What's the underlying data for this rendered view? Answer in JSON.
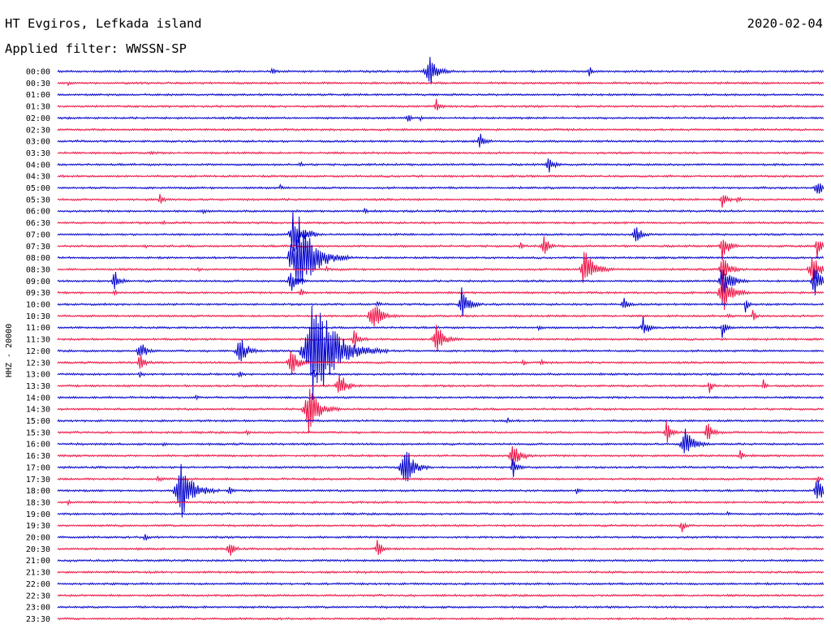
{
  "header": {
    "station": "HT Evgiros, Lefkada island",
    "filter": "Applied filter: WWSSN-SP",
    "date": "2020-02-04"
  },
  "chart_data": {
    "type": "line",
    "title": "HT Evgiros, Lefkada island",
    "ylabel": "HHZ - 20000",
    "colors": [
      "#0000cc",
      "#ee1144"
    ],
    "rows": [
      "00:00",
      "00:30",
      "01:00",
      "01:30",
      "02:00",
      "02:30",
      "03:00",
      "03:30",
      "04:00",
      "04:30",
      "05:00",
      "05:30",
      "06:00",
      "06:30",
      "07:00",
      "07:30",
      "08:00",
      "08:30",
      "09:00",
      "09:30",
      "10:00",
      "10:30",
      "11:00",
      "11:30",
      "12:00",
      "12:30",
      "13:00",
      "13:30",
      "14:00",
      "14:30",
      "15:00",
      "15:30",
      "16:00",
      "16:30",
      "17:00",
      "17:30",
      "18:00",
      "18:30",
      "19:00",
      "19:30",
      "20:00",
      "20:30",
      "21:00",
      "21:30",
      "22:00",
      "22:30",
      "23:00",
      "23:30"
    ],
    "x_range_minutes": [
      0,
      30
    ],
    "events": [
      [
        0,
        8.4,
        7
      ],
      [
        0,
        14.5,
        26
      ],
      [
        0,
        20.8,
        8
      ],
      [
        1,
        0.4,
        3
      ],
      [
        3,
        14.8,
        12
      ],
      [
        4,
        13.7,
        8
      ],
      [
        4,
        14.2,
        4
      ],
      [
        6,
        16.5,
        14
      ],
      [
        7,
        3.6,
        3
      ],
      [
        8,
        9.5,
        5
      ],
      [
        8,
        19.2,
        14
      ],
      [
        10,
        8.7,
        3
      ],
      [
        10,
        29.7,
        16
      ],
      [
        11,
        4.0,
        10
      ],
      [
        11,
        26.0,
        14
      ],
      [
        11,
        26.6,
        6
      ],
      [
        12,
        5.7,
        4
      ],
      [
        12,
        12.0,
        4
      ],
      [
        13,
        4.1,
        3
      ],
      [
        14,
        9.9,
        5
      ],
      [
        14,
        22.6,
        16
      ],
      [
        14,
        9.2,
        28
      ],
      [
        15,
        3.4,
        3
      ],
      [
        15,
        18.1,
        5
      ],
      [
        15,
        19.0,
        16
      ],
      [
        15,
        26.0,
        20
      ],
      [
        15,
        29.7,
        16
      ],
      [
        16,
        9.1,
        16
      ],
      [
        16,
        9.4,
        56
      ],
      [
        17,
        5.5,
        3
      ],
      [
        17,
        10.5,
        4
      ],
      [
        17,
        20.6,
        30
      ],
      [
        17,
        26.0,
        22
      ],
      [
        17,
        29.5,
        24
      ],
      [
        18,
        2.2,
        16
      ],
      [
        18,
        9.1,
        18
      ],
      [
        18,
        26.0,
        28
      ],
      [
        18,
        29.6,
        24
      ],
      [
        19,
        2.2,
        6
      ],
      [
        19,
        26.0,
        28
      ],
      [
        19,
        9.5,
        8
      ],
      [
        20,
        12.5,
        4
      ],
      [
        20,
        15.8,
        22
      ],
      [
        20,
        22.1,
        12
      ],
      [
        20,
        26.9,
        10
      ],
      [
        21,
        12.3,
        26
      ],
      [
        21,
        26.2,
        4
      ],
      [
        21,
        27.2,
        8
      ],
      [
        22,
        18.8,
        4
      ],
      [
        22,
        22.9,
        16
      ],
      [
        22,
        26.0,
        12
      ],
      [
        23,
        11.6,
        14
      ],
      [
        23,
        14.8,
        26
      ],
      [
        24,
        3.2,
        18
      ],
      [
        24,
        7.1,
        24
      ],
      [
        24,
        10.0,
        76
      ],
      [
        25,
        3.2,
        14
      ],
      [
        25,
        9.1,
        22
      ],
      [
        25,
        18.2,
        4
      ],
      [
        25,
        18.9,
        4
      ],
      [
        26,
        3.2,
        8
      ],
      [
        26,
        7.1,
        8
      ],
      [
        26,
        10.0,
        8
      ],
      [
        27,
        11.0,
        22
      ],
      [
        27,
        25.5,
        10
      ],
      [
        27,
        27.6,
        8
      ],
      [
        28,
        5.4,
        4
      ],
      [
        29,
        9.8,
        34
      ],
      [
        30,
        17.6,
        4
      ],
      [
        31,
        7.4,
        3
      ],
      [
        31,
        23.8,
        16
      ],
      [
        31,
        25.4,
        16
      ],
      [
        32,
        4.1,
        3
      ],
      [
        32,
        24.5,
        26
      ],
      [
        33,
        17.8,
        22
      ],
      [
        33,
        26.7,
        8
      ],
      [
        34,
        13.4,
        10
      ],
      [
        34,
        13.6,
        28
      ],
      [
        34,
        17.8,
        14
      ],
      [
        35,
        3.9,
        8
      ],
      [
        35,
        29.7,
        6
      ],
      [
        36,
        4.8,
        40
      ],
      [
        36,
        6.7,
        8
      ],
      [
        36,
        20.3,
        4
      ],
      [
        36,
        29.7,
        20
      ],
      [
        37,
        0.4,
        4
      ],
      [
        38,
        26.2,
        4
      ],
      [
        39,
        24.4,
        10
      ],
      [
        40,
        3.4,
        8
      ],
      [
        41,
        6.7,
        14
      ],
      [
        41,
        12.5,
        14
      ]
    ]
  }
}
